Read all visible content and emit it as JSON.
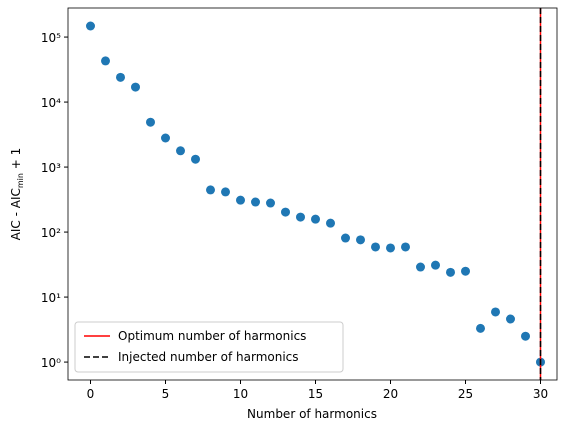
{
  "chart_data": {
    "type": "scatter",
    "xlabel": "Number of harmonics",
    "ylabel_parts": [
      "AIC - AIC",
      "min",
      " + 1"
    ],
    "x": [
      0,
      1,
      2,
      3,
      4,
      5,
      6,
      7,
      8,
      9,
      10,
      11,
      12,
      13,
      14,
      15,
      16,
      17,
      18,
      19,
      20,
      21,
      22,
      23,
      24,
      25,
      26,
      27,
      28,
      29,
      30
    ],
    "series": [
      {
        "color": "#1f77b4",
        "values": [
          148000,
          43000,
          24000,
          17000,
          4900,
          2800,
          1780,
          1320,
          445,
          415,
          310,
          290,
          280,
          203,
          170,
          158,
          137,
          81,
          76,
          59,
          57,
          59,
          29,
          31,
          24,
          25,
          3.3,
          5.9,
          4.6,
          2.5,
          1
        ]
      }
    ],
    "vlines": [
      {
        "name": "Optimum number of harmonics",
        "color": "#ff0000",
        "x": 30,
        "style": "solid"
      },
      {
        "name": "Injected number of harmonics",
        "color": "#000000",
        "x": 30,
        "style": "dashed"
      }
    ],
    "xlim": [
      -1.5,
      31.1
    ],
    "xticks": [
      0,
      5,
      10,
      15,
      20,
      25,
      30
    ],
    "ylim": [
      0.53,
      280000
    ],
    "log_y": true,
    "yticks": [
      {
        "value": 1,
        "label": "10⁰"
      },
      {
        "value": 10,
        "label": "10¹"
      },
      {
        "value": 100,
        "label": "10²"
      },
      {
        "value": 1000,
        "label": "10³"
      },
      {
        "value": 10000,
        "label": "10⁴"
      },
      {
        "value": 100000,
        "label": "10⁵"
      }
    ],
    "legend": "lower left"
  }
}
